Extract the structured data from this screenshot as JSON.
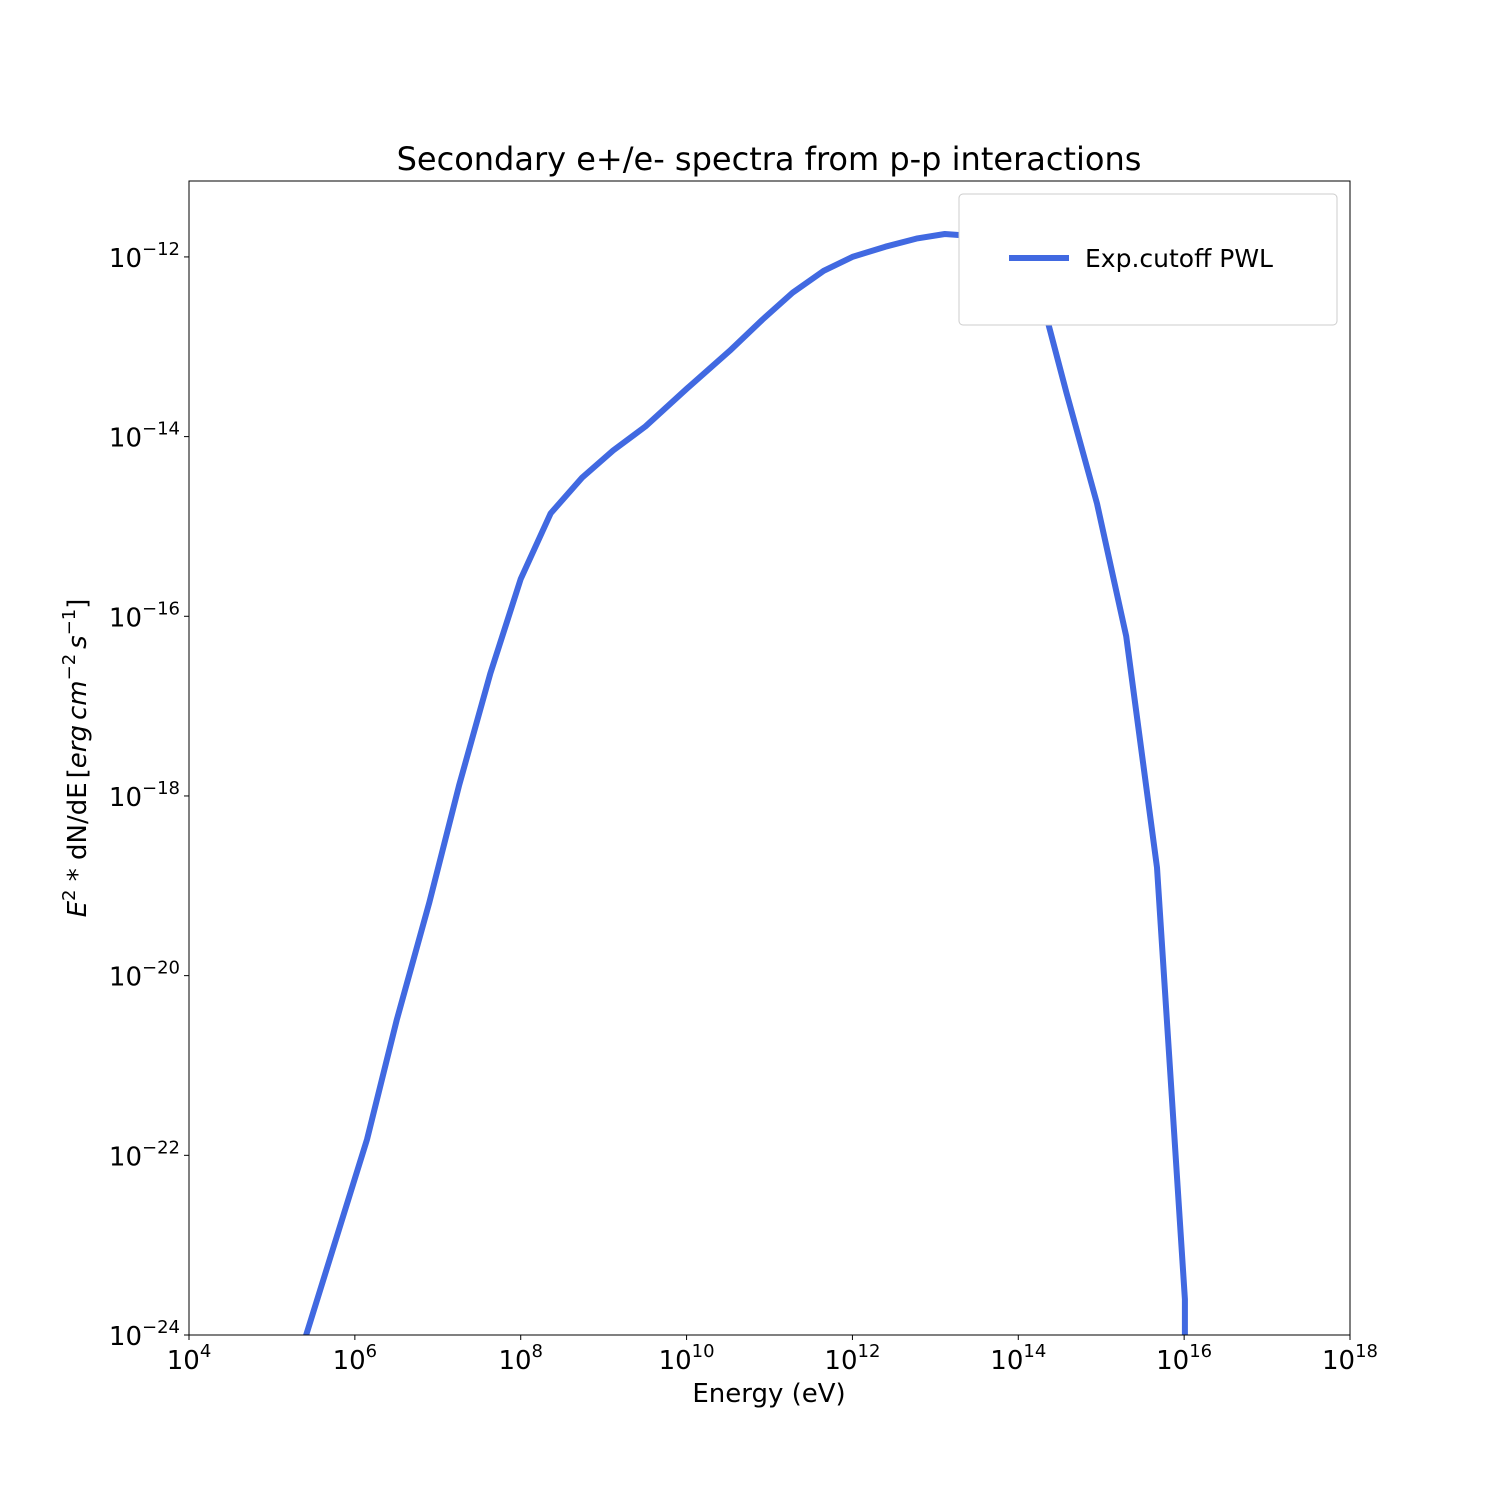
{
  "chart_data": {
    "type": "line",
    "title": "Secondary e+/e- spectra from p-p interactions",
    "xlabel": "Energy (eV)",
    "ylabel": {
      "text": "E^2 * dN/dE [erg cm^-2 s^-1]",
      "parts": {
        "E": "E",
        "exp2": "2",
        "star": " * ",
        "dN": "dN",
        "slash": "/",
        "dE": "dE",
        "unit_open": "[",
        "erg": "erg",
        "cm": "cm",
        "cm_exp": "−2",
        "s": "s",
        "s_exp": "−1",
        "unit_close": "]"
      }
    },
    "x_scale": "log",
    "y_scale": "log",
    "xlim": [
      10000,
      1e+18
    ],
    "ylim": [
      1e-24,
      7e-12
    ],
    "x_ticks": [
      {
        "value": 10000.0,
        "base": "10",
        "exp": "4"
      },
      {
        "value": 1000000.0,
        "base": "10",
        "exp": "6"
      },
      {
        "value": 100000000.0,
        "base": "10",
        "exp": "8"
      },
      {
        "value": 10000000000.0,
        "base": "10",
        "exp": "10"
      },
      {
        "value": 1000000000000.0,
        "base": "10",
        "exp": "12"
      },
      {
        "value": 100000000000000.0,
        "base": "10",
        "exp": "14"
      },
      {
        "value": 1e+16,
        "base": "10",
        "exp": "16"
      },
      {
        "value": 1e+18,
        "base": "10",
        "exp": "18"
      }
    ],
    "y_ticks": [
      {
        "value": 1e-24,
        "base": "10",
        "exp": "−24"
      },
      {
        "value": 1e-22,
        "base": "10",
        "exp": "−22"
      },
      {
        "value": 1e-20,
        "base": "10",
        "exp": "−20"
      },
      {
        "value": 1e-18,
        "base": "10",
        "exp": "−18"
      },
      {
        "value": 1e-16,
        "base": "10",
        "exp": "−16"
      },
      {
        "value": 1e-14,
        "base": "10",
        "exp": "−14"
      },
      {
        "value": 1e-12,
        "base": "10",
        "exp": "−12"
      }
    ],
    "grid": false,
    "legend_position": "top-right",
    "series": [
      {
        "name": "Exp.cutoff PWL",
        "color": "#4169e1",
        "x": [
          250000,
          1400000.0,
          3200000.0,
          7900000.0,
          18000000.0,
          43000000.0,
          100000000.0,
          230000000.0,
          550000000.0,
          1300000000.0,
          3200000000.0,
          10000000000.0,
          33000000000.0,
          82000000000.0,
          190000000000.0,
          450000000000.0,
          1000000000000.0,
          2500000000000.0,
          5900000000000.0,
          13000000000000.0,
          31000000000000.0,
          72000000000000.0,
          170000000000000.0,
          380000000000000.0,
          890000000000000.0,
          2000000000000000.0,
          4700000000000000.0,
          1.02e+16,
          1.02e+16
        ],
        "y": [
          9e-25,
          1.5e-22,
          3.2e-21,
          6.5e-20,
          1.3e-18,
          2.3e-17,
          2.6e-16,
          1.4e-15,
          3.5e-15,
          7e-15,
          1.3e-14,
          3.4e-14,
          9e-14,
          2e-13,
          4e-13,
          7e-13,
          1e-12,
          1.3e-12,
          1.6e-12,
          1.8e-12,
          1.7e-12,
          1.2e-12,
          5.2e-13,
          3.1e-14,
          1.8e-15,
          6e-17,
          1.6e-19,
          2.5e-24,
          9e-25
        ]
      }
    ]
  }
}
